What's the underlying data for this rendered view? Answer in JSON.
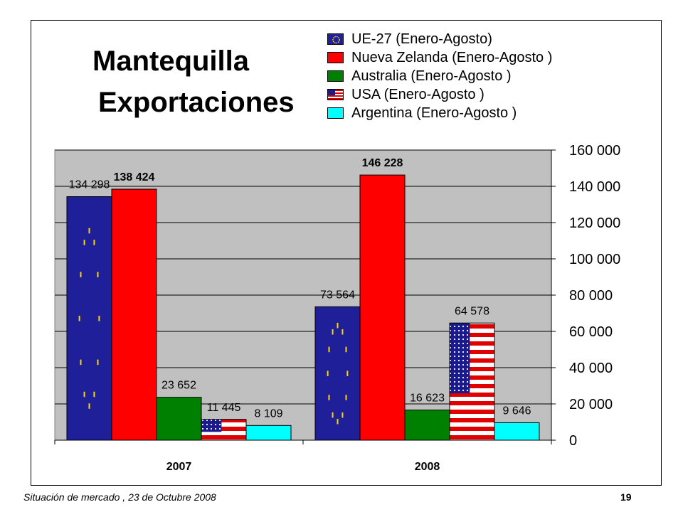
{
  "title": "Mantequilla",
  "subtitle": "Exportaciones",
  "footer": {
    "text": "Situación de mercado , 23 de  Octubre 2008",
    "page_number": "19"
  },
  "chart_data": {
    "type": "bar",
    "categories": [
      "2007",
      "2008"
    ],
    "ylim": [
      0,
      160000
    ],
    "yticks": [
      "0",
      "20 000",
      "40 000",
      "60 000",
      "80 000",
      "100 000",
      "120 000",
      "140 000",
      "160 000"
    ],
    "y_axis_side": "right",
    "grid": true,
    "legend_position": "top-right",
    "series": [
      {
        "name": "UE-27 (Enero-Agosto)",
        "values": [
          134298,
          73564
        ],
        "labels": [
          "134 298",
          "73 564"
        ],
        "color": "#1f1f99",
        "fill": "eu-flag",
        "bold_labels": false
      },
      {
        "name": "Nueva Zelanda (Enero-Agosto )",
        "values": [
          138424,
          146228
        ],
        "labels": [
          "138 424",
          "146 228"
        ],
        "color": "#ff0000",
        "fill": "solid",
        "bold_labels": true
      },
      {
        "name": "Australia (Enero-Agosto )",
        "values": [
          23652,
          16623
        ],
        "labels": [
          "23 652",
          "16 623"
        ],
        "color": "#008000",
        "fill": "solid",
        "bold_labels": false
      },
      {
        "name": "USA (Enero-Agosto )",
        "values": [
          11445,
          64578
        ],
        "labels": [
          "11 445",
          "64 578"
        ],
        "color": "#cc0000",
        "fill": "us-flag",
        "bold_labels": false
      },
      {
        "name": "Argentina (Enero-Agosto )",
        "values": [
          8109,
          9646
        ],
        "labels": [
          "8 109",
          "9 646"
        ],
        "color": "#00ffff",
        "fill": "solid",
        "bold_labels": false
      }
    ]
  }
}
